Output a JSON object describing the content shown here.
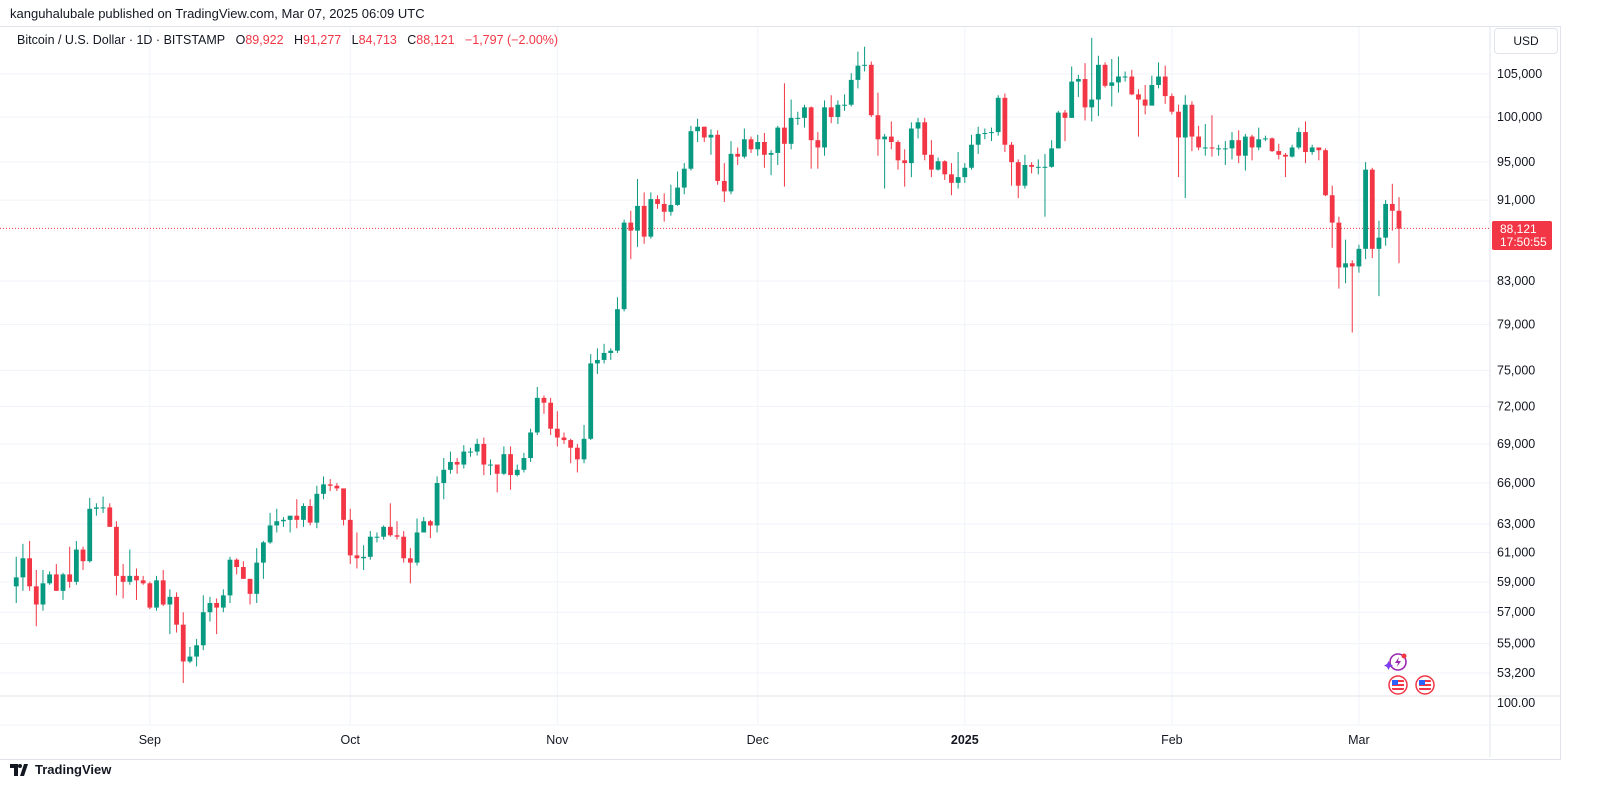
{
  "header": {
    "published": "kanguhalubale published on TradingView.com, Mar 07, 2025 06:09 UTC"
  },
  "legend": {
    "symbol": "Bitcoin / U.S. Dollar · 1D · BITSTAMP",
    "open_label": "O",
    "open": "89,922",
    "high_label": "H",
    "high": "91,277",
    "low_label": "L",
    "low": "84,713",
    "close_label": "C",
    "close": "88,121",
    "change": "−1,797 (−2.00%)"
  },
  "currency_button": "USD",
  "price_tag": {
    "price": "88,121",
    "countdown": "17:50:55"
  },
  "footer": {
    "brand": "TradingView"
  },
  "colors": {
    "up": "#089981",
    "down": "#f23645",
    "grid": "#f0f3fa"
  },
  "chart_data": {
    "type": "candlestick",
    "title": "Bitcoin / U.S. Dollar · 1D · BITSTAMP",
    "scale": "log",
    "units": "USD thousands",
    "ylim": [
      52.0,
      110.5
    ],
    "y_ticks": [
      "105,000",
      "100,000",
      "95,000",
      "91,000",
      "83,000",
      "79,000",
      "75,000",
      "72,000",
      "69,000",
      "66,000",
      "63,000",
      "61,000",
      "59,000",
      "57,000",
      "55,000",
      "53,200"
    ],
    "y_tick_values": [
      105,
      100,
      95,
      91,
      83,
      79,
      75,
      72,
      69,
      66,
      63,
      61,
      59,
      57,
      55,
      53.2
    ],
    "secondary_pane_label": "100.00",
    "x_ticks": [
      {
        "label": "Sep",
        "index": 20
      },
      {
        "label": "Oct",
        "index": 50
      },
      {
        "label": "Nov",
        "index": 81
      },
      {
        "label": "Dec",
        "index": 111
      },
      {
        "label": "2025",
        "index": 142,
        "bold": true
      },
      {
        "label": "Feb",
        "index": 173
      },
      {
        "label": "Mar",
        "index": 201
      }
    ],
    "start_date": "2024-08-12",
    "end_date": "2025-03-07",
    "last_price": 88.121,
    "ohlc": [
      [
        58.7,
        60.7,
        57.6,
        59.3
      ],
      [
        59.3,
        61.6,
        58.4,
        60.6
      ],
      [
        60.6,
        61.8,
        58.4,
        58.7
      ],
      [
        58.7,
        59.8,
        56.1,
        57.5
      ],
      [
        57.5,
        59.8,
        57.1,
        58.9
      ],
      [
        58.9,
        59.7,
        58.8,
        59.5
      ],
      [
        59.5,
        60.2,
        58.4,
        58.4
      ],
      [
        58.4,
        59.6,
        57.8,
        59.5
      ],
      [
        59.5,
        61.4,
        58.6,
        59.0
      ],
      [
        59.0,
        61.8,
        58.8,
        61.2
      ],
      [
        61.2,
        61.4,
        59.8,
        60.4
      ],
      [
        60.4,
        64.9,
        60.3,
        64.1
      ],
      [
        64.1,
        64.5,
        63.6,
        64.2
      ],
      [
        64.2,
        65.0,
        63.8,
        64.2
      ],
      [
        64.2,
        64.5,
        62.8,
        62.8
      ],
      [
        62.8,
        63.2,
        58.1,
        59.4
      ],
      [
        59.4,
        60.2,
        57.9,
        59.0
      ],
      [
        59.0,
        61.2,
        58.8,
        59.4
      ],
      [
        59.4,
        59.9,
        57.8,
        59.1
      ],
      [
        59.1,
        59.4,
        58.8,
        58.9
      ],
      [
        58.9,
        59.0,
        57.2,
        57.3
      ],
      [
        57.3,
        59.4,
        57.1,
        59.1
      ],
      [
        59.1,
        59.8,
        57.4,
        57.5
      ],
      [
        57.5,
        58.5,
        55.6,
        58.0
      ],
      [
        58.0,
        58.3,
        55.7,
        56.2
      ],
      [
        56.2,
        57.0,
        52.6,
        53.9
      ],
      [
        53.9,
        54.8,
        53.8,
        54.2
      ],
      [
        54.2,
        55.3,
        53.6,
        54.9
      ],
      [
        54.9,
        58.1,
        54.6,
        57.0
      ],
      [
        57.0,
        58.0,
        56.4,
        57.6
      ],
      [
        57.6,
        57.9,
        55.6,
        57.3
      ],
      [
        57.3,
        58.5,
        57.0,
        58.1
      ],
      [
        58.1,
        60.7,
        57.6,
        60.5
      ],
      [
        60.5,
        60.6,
        59.5,
        60.0
      ],
      [
        60.0,
        60.4,
        59.2,
        59.2
      ],
      [
        59.2,
        59.2,
        57.5,
        58.2
      ],
      [
        58.2,
        61.3,
        57.6,
        60.3
      ],
      [
        60.3,
        61.8,
        59.2,
        61.7
      ],
      [
        61.7,
        63.8,
        61.6,
        62.9
      ],
      [
        62.9,
        64.1,
        62.4,
        63.2
      ],
      [
        63.2,
        63.5,
        62.8,
        63.3
      ],
      [
        63.3,
        63.6,
        62.4,
        63.6
      ],
      [
        63.6,
        64.8,
        62.7,
        63.3
      ],
      [
        63.3,
        64.5,
        62.8,
        64.3
      ],
      [
        64.3,
        64.8,
        62.9,
        63.1
      ],
      [
        63.1,
        65.8,
        62.7,
        65.2
      ],
      [
        65.2,
        66.5,
        64.8,
        65.9
      ],
      [
        65.9,
        66.3,
        65.4,
        65.8
      ],
      [
        65.8,
        66.0,
        65.4,
        65.6
      ],
      [
        65.6,
        65.6,
        62.9,
        63.3
      ],
      [
        63.3,
        64.1,
        60.2,
        60.8
      ],
      [
        60.8,
        62.4,
        59.9,
        60.6
      ],
      [
        60.6,
        61.5,
        59.8,
        60.7
      ],
      [
        60.7,
        62.5,
        60.5,
        62.1
      ],
      [
        62.1,
        62.4,
        61.7,
        62.1
      ],
      [
        62.1,
        62.9,
        61.9,
        62.8
      ],
      [
        62.8,
        64.5,
        62.1,
        62.2
      ],
      [
        62.2,
        63.2,
        61.9,
        62.1
      ],
      [
        62.1,
        62.5,
        60.3,
        60.6
      ],
      [
        60.6,
        61.3,
        58.9,
        60.3
      ],
      [
        60.3,
        63.4,
        60.1,
        62.4
      ],
      [
        62.4,
        63.5,
        62.4,
        63.2
      ],
      [
        63.2,
        63.3,
        62.0,
        62.9
      ],
      [
        62.9,
        66.5,
        62.4,
        66.0
      ],
      [
        66.0,
        67.9,
        64.8,
        67.0
      ],
      [
        67.0,
        68.4,
        66.7,
        67.6
      ],
      [
        67.6,
        67.9,
        66.7,
        67.4
      ],
      [
        67.4,
        68.9,
        67.1,
        68.4
      ],
      [
        68.4,
        68.7,
        68.0,
        68.4
      ],
      [
        68.4,
        69.4,
        68.1,
        69.0
      ],
      [
        69.0,
        69.5,
        66.6,
        67.4
      ],
      [
        67.4,
        67.8,
        66.6,
        67.4
      ],
      [
        67.4,
        67.4,
        65.3,
        66.7
      ],
      [
        66.7,
        68.8,
        66.6,
        68.2
      ],
      [
        68.2,
        68.8,
        65.5,
        66.6
      ],
      [
        66.6,
        67.4,
        66.5,
        67.0
      ],
      [
        67.0,
        68.3,
        66.8,
        67.9
      ],
      [
        67.9,
        70.2,
        67.6,
        69.9
      ],
      [
        69.9,
        73.6,
        69.7,
        72.7
      ],
      [
        72.7,
        72.9,
        71.4,
        72.3
      ],
      [
        72.3,
        72.7,
        69.7,
        70.2
      ],
      [
        70.2,
        71.6,
        68.8,
        69.5
      ],
      [
        69.5,
        69.9,
        69.0,
        69.3
      ],
      [
        69.3,
        69.4,
        67.5,
        68.7
      ],
      [
        68.7,
        69.0,
        66.8,
        67.8
      ],
      [
        67.8,
        70.5,
        67.5,
        69.4
      ],
      [
        69.4,
        76.4,
        69.3,
        75.6
      ],
      [
        75.6,
        76.9,
        74.7,
        75.9
      ],
      [
        75.9,
        77.3,
        75.6,
        76.5
      ],
      [
        76.5,
        76.9,
        75.9,
        76.7
      ],
      [
        76.7,
        81.5,
        76.5,
        80.4
      ],
      [
        80.4,
        89.0,
        80.2,
        88.7
      ],
      [
        88.7,
        89.9,
        85.1,
        87.9
      ],
      [
        87.9,
        93.2,
        86.3,
        90.4
      ],
      [
        90.4,
        91.8,
        86.6,
        87.3
      ],
      [
        87.3,
        91.8,
        87.1,
        91.1
      ],
      [
        91.1,
        91.5,
        90.1,
        90.6
      ],
      [
        90.6,
        91.7,
        88.8,
        89.8
      ],
      [
        89.8,
        92.6,
        89.4,
        90.5
      ],
      [
        90.5,
        94.0,
        90.4,
        92.3
      ],
      [
        92.3,
        94.9,
        91.6,
        94.3
      ],
      [
        94.3,
        99.0,
        94.1,
        98.4
      ],
      [
        98.4,
        99.8,
        97.2,
        98.9
      ],
      [
        98.9,
        98.9,
        97.2,
        97.7
      ],
      [
        97.7,
        98.6,
        95.8,
        98.0
      ],
      [
        98.0,
        98.5,
        92.6,
        93.0
      ],
      [
        93.0,
        94.9,
        90.8,
        91.9
      ],
      [
        91.9,
        97.3,
        91.6,
        95.9
      ],
      [
        95.9,
        96.6,
        94.7,
        95.6
      ],
      [
        95.6,
        98.7,
        95.4,
        97.5
      ],
      [
        97.5,
        97.8,
        96.0,
        96.4
      ],
      [
        96.4,
        98.0,
        95.7,
        97.2
      ],
      [
        97.2,
        98.2,
        94.4,
        95.8
      ],
      [
        95.8,
        96.3,
        93.6,
        96.0
      ],
      [
        96.0,
        99.0,
        94.7,
        98.8
      ],
      [
        98.8,
        103.9,
        92.4,
        97.0
      ],
      [
        97.0,
        102.0,
        96.4,
        99.9
      ],
      [
        99.9,
        100.6,
        99.1,
        99.9
      ],
      [
        99.9,
        101.4,
        98.8,
        101.1
      ],
      [
        101.1,
        101.2,
        94.3,
        97.4
      ],
      [
        97.4,
        98.3,
        94.3,
        96.6
      ],
      [
        96.6,
        101.9,
        95.7,
        101.1
      ],
      [
        101.1,
        102.5,
        99.3,
        100.0
      ],
      [
        100.0,
        101.9,
        99.2,
        101.4
      ],
      [
        101.4,
        102.6,
        100.7,
        101.4
      ],
      [
        101.4,
        105.1,
        101.2,
        104.3
      ],
      [
        104.3,
        107.7,
        103.3,
        106.0
      ],
      [
        106.0,
        108.3,
        105.3,
        106.1
      ],
      [
        106.1,
        106.5,
        100.0,
        100.2
      ],
      [
        100.2,
        102.8,
        95.7,
        97.5
      ],
      [
        97.5,
        98.1,
        92.2,
        97.8
      ],
      [
        97.8,
        99.5,
        96.4,
        97.2
      ],
      [
        97.2,
        97.4,
        94.2,
        95.2
      ],
      [
        95.2,
        96.4,
        92.4,
        94.9
      ],
      [
        94.9,
        99.4,
        93.4,
        98.7
      ],
      [
        98.7,
        99.9,
        97.6,
        99.4
      ],
      [
        99.4,
        99.9,
        95.2,
        95.8
      ],
      [
        95.8,
        97.4,
        93.4,
        94.2
      ],
      [
        94.2,
        95.5,
        94.1,
        95.1
      ],
      [
        95.1,
        95.2,
        93.1,
        93.7
      ],
      [
        93.7,
        94.9,
        91.5,
        92.8
      ],
      [
        92.8,
        96.1,
        92.2,
        93.4
      ],
      [
        93.4,
        94.9,
        92.8,
        94.4
      ],
      [
        94.4,
        98.0,
        94.2,
        96.9
      ],
      [
        96.9,
        98.9,
        95.9,
        98.1
      ],
      [
        98.1,
        98.7,
        97.5,
        98.2
      ],
      [
        98.2,
        98.8,
        97.3,
        98.3
      ],
      [
        98.3,
        102.5,
        97.9,
        102.2
      ],
      [
        102.2,
        102.7,
        96.1,
        96.9
      ],
      [
        96.9,
        97.2,
        92.5,
        95.0
      ],
      [
        95.0,
        95.3,
        91.2,
        92.5
      ],
      [
        92.5,
        95.8,
        92.2,
        94.7
      ],
      [
        94.7,
        95.0,
        93.8,
        94.5
      ],
      [
        94.5,
        95.3,
        93.7,
        94.5
      ],
      [
        94.5,
        95.9,
        89.3,
        94.5
      ],
      [
        94.5,
        97.4,
        94.4,
        96.5
      ],
      [
        96.5,
        100.7,
        96.5,
        100.5
      ],
      [
        100.5,
        100.8,
        97.3,
        99.9
      ],
      [
        99.9,
        105.9,
        99.9,
        104.1
      ],
      [
        104.1,
        104.9,
        102.3,
        104.4
      ],
      [
        104.4,
        106.3,
        99.6,
        101.1
      ],
      [
        101.1,
        109.4,
        99.5,
        102.0
      ],
      [
        102.0,
        107.2,
        100.1,
        106.1
      ],
      [
        106.1,
        106.4,
        103.4,
        103.6
      ],
      [
        103.6,
        106.8,
        101.2,
        104.0
      ],
      [
        104.0,
        107.1,
        102.8,
        104.7
      ],
      [
        104.7,
        105.3,
        104.1,
        104.7
      ],
      [
        104.7,
        105.5,
        102.5,
        102.6
      ],
      [
        102.6,
        103.2,
        97.8,
        102.0
      ],
      [
        102.0,
        103.7,
        100.3,
        101.3
      ],
      [
        101.3,
        104.8,
        101.3,
        103.7
      ],
      [
        103.7,
        106.4,
        103.3,
        104.7
      ],
      [
        104.7,
        106.0,
        101.5,
        102.4
      ],
      [
        102.4,
        102.7,
        100.3,
        100.6
      ],
      [
        100.6,
        101.4,
        93.4,
        97.7
      ],
      [
        97.7,
        102.5,
        91.2,
        101.4
      ],
      [
        101.4,
        101.8,
        96.2,
        97.8
      ],
      [
        97.8,
        99.0,
        96.3,
        96.6
      ],
      [
        96.6,
        99.2,
        95.7,
        96.6
      ],
      [
        96.6,
        100.2,
        95.6,
        96.5
      ],
      [
        96.5,
        96.9,
        95.7,
        96.5
      ],
      [
        96.5,
        97.3,
        94.7,
        96.5
      ],
      [
        96.5,
        98.3,
        95.3,
        97.4
      ],
      [
        97.4,
        98.5,
        94.9,
        95.7
      ],
      [
        95.7,
        98.1,
        94.1,
        97.8
      ],
      [
        97.8,
        98.0,
        95.2,
        96.6
      ],
      [
        96.6,
        98.8,
        96.3,
        97.5
      ],
      [
        97.5,
        97.9,
        97.3,
        97.6
      ],
      [
        97.6,
        97.7,
        96.1,
        96.2
      ],
      [
        96.2,
        97.0,
        95.3,
        95.8
      ],
      [
        95.8,
        96.0,
        93.4,
        95.6
      ],
      [
        95.6,
        96.9,
        95.5,
        96.6
      ],
      [
        96.6,
        98.8,
        96.4,
        98.3
      ],
      [
        98.3,
        99.5,
        94.9,
        96.1
      ],
      [
        96.1,
        96.9,
        95.8,
        96.6
      ],
      [
        96.6,
        96.6,
        95.2,
        96.3
      ],
      [
        96.3,
        96.5,
        91.4,
        91.5
      ],
      [
        91.5,
        92.5,
        86.2,
        88.7
      ],
      [
        88.7,
        89.3,
        82.3,
        84.3
      ],
      [
        84.3,
        87.0,
        82.8,
        84.7
      ],
      [
        84.7,
        85.0,
        78.3,
        84.4
      ],
      [
        84.4,
        86.5,
        83.8,
        86.1
      ],
      [
        86.1,
        95.0,
        85.1,
        94.2
      ],
      [
        94.2,
        94.4,
        85.2,
        86.1
      ],
      [
        86.1,
        88.9,
        81.6,
        87.2
      ],
      [
        87.2,
        91.0,
        86.4,
        90.6
      ],
      [
        90.6,
        92.7,
        87.9,
        89.9
      ],
      [
        89.9,
        91.3,
        84.7,
        88.1
      ]
    ]
  }
}
